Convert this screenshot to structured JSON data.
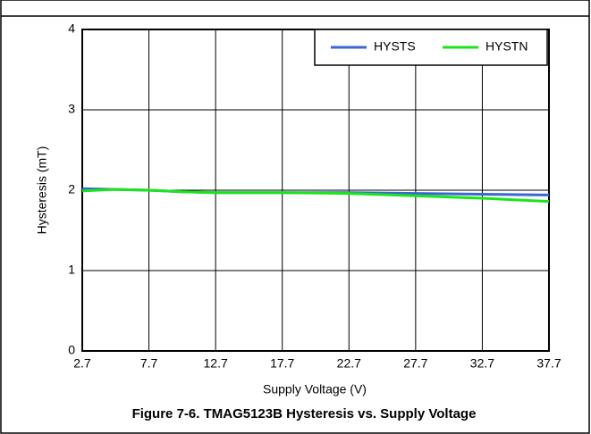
{
  "chart_data": {
    "type": "line",
    "caption": "Figure 7-6. TMAG5123B Hysteresis vs. Supply Voltage",
    "x_label": "Supply Voltage (V)",
    "y_label": "Hysteresis (mT)",
    "x": [
      2.7,
      5.2,
      7.7,
      10.2,
      12.7,
      17.7,
      22.7,
      27.7,
      32.7,
      37.7
    ],
    "series": [
      {
        "name": "HYSTS",
        "color": "#3a66d6",
        "values": [
          2.02,
          2.01,
          2.0,
          1.98,
          1.97,
          1.97,
          1.97,
          1.96,
          1.95,
          1.94
        ]
      },
      {
        "name": "HYSTN",
        "color": "#19e619",
        "values": [
          1.99,
          2.01,
          2.0,
          1.98,
          1.97,
          1.97,
          1.96,
          1.93,
          1.9,
          1.86
        ]
      }
    ],
    "xlim": [
      2.7,
      37.7
    ],
    "xticks": [
      2.7,
      7.7,
      12.7,
      17.7,
      22.7,
      27.7,
      32.7,
      37.7
    ],
    "ylim": [
      0,
      4
    ],
    "yticks": [
      0,
      1,
      2,
      3,
      4
    ],
    "grid": true,
    "legend": "top-right"
  }
}
